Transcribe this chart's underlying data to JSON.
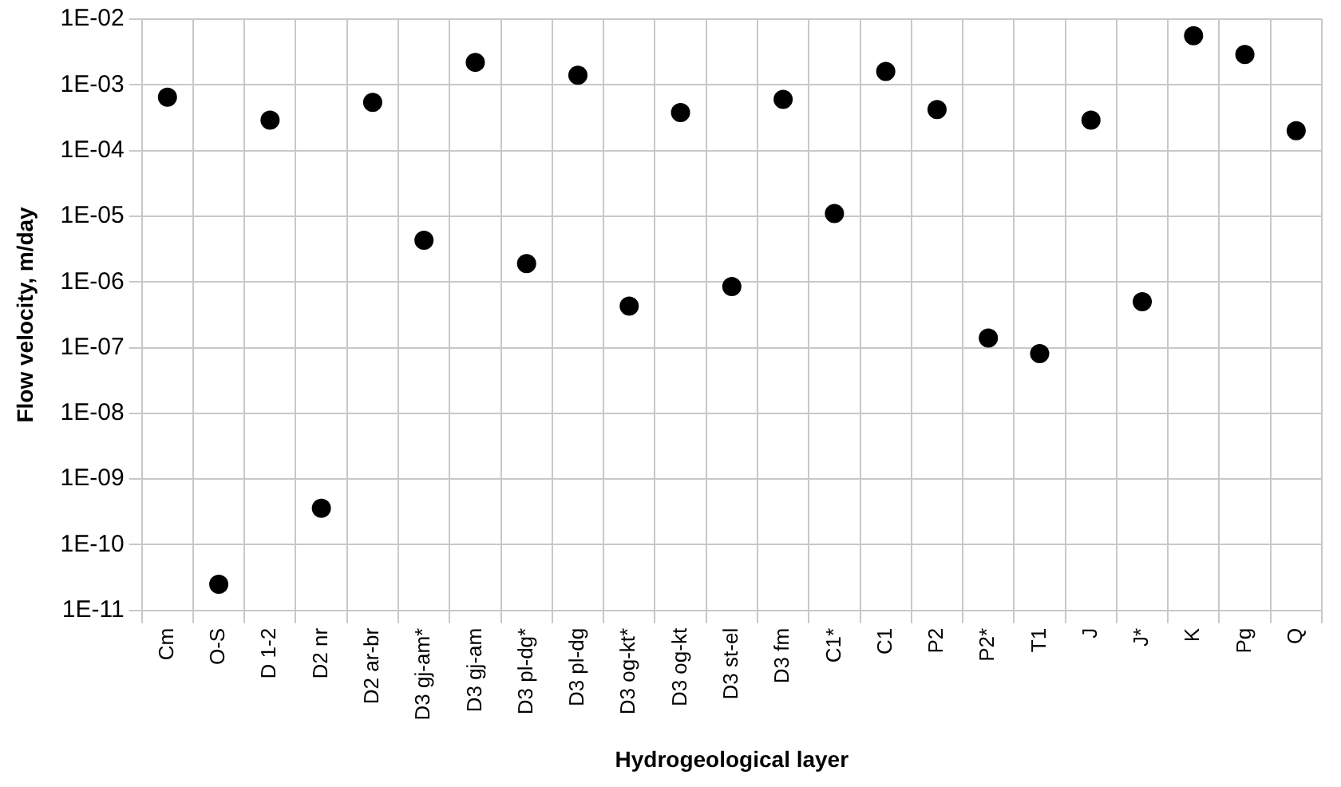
{
  "chart_data": {
    "type": "scatter",
    "xlabel": "Hydrogeological layer",
    "ylabel": "Flow velocity, m/day",
    "categories": [
      "Cm",
      "O-S",
      "D 1-2",
      "D2 nr",
      "D2 ar-br",
      "D3 gj-am*",
      "D3 gj-am",
      "D3 pl-dg*",
      "D3 pl-dg",
      "D3 og-kt*",
      "D3 og-kt",
      "D3 st-el",
      "D3 fm",
      "C1*",
      "C1",
      "P2",
      "P2*",
      "T1",
      "J",
      "J*",
      "K",
      "Pg",
      "Q"
    ],
    "values": [
      0.00065,
      2.5e-11,
      0.00029,
      3.6e-10,
      0.00054,
      4.3e-06,
      0.0022,
      1.9e-06,
      0.0014,
      4.3e-07,
      0.00038,
      8.5e-07,
      0.0006,
      1.1e-05,
      0.0016,
      0.00042,
      1.4e-07,
      8.1e-08,
      0.00029,
      5e-07,
      0.0056,
      0.0029,
      0.0002
    ],
    "color": "#000000",
    "marker": "circle",
    "log": "y",
    "grid": true,
    "legend": false,
    "ylim": [
      1e-11,
      0.01
    ],
    "yticks": [
      {
        "value": 1e-11,
        "label": "1E-11"
      },
      {
        "value": 1e-10,
        "label": "1E-10"
      },
      {
        "value": 1e-09,
        "label": "1E-09"
      },
      {
        "value": 1e-08,
        "label": "1E-08"
      },
      {
        "value": 1e-07,
        "label": "1E-07"
      },
      {
        "value": 1e-06,
        "label": "1E-06"
      },
      {
        "value": 1e-05,
        "label": "1E-05"
      },
      {
        "value": 0.0001,
        "label": "1E-04"
      },
      {
        "value": 0.001,
        "label": "1E-03"
      },
      {
        "value": 0.01,
        "label": "1E-02"
      }
    ]
  }
}
